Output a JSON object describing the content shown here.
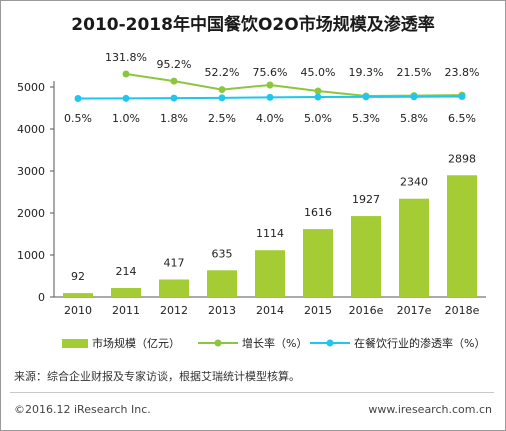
{
  "title": "2010-2018年中国餐饮O2O市场规模及渗透率",
  "source": "来源：综合企业财报及专家访谈，根据艾瑞统计模型核算。",
  "copyright": "©2016.12 iResearch Inc.",
  "website": "www.iresearch.com.cn",
  "colors": {
    "bar": "#a4cc34",
    "growth": "#8cc63f",
    "penetration": "#1fc6ee"
  },
  "chart_data": {
    "type": "bar",
    "categories": [
      "2010",
      "2011",
      "2012",
      "2013",
      "2014",
      "2015",
      "2016e",
      "2017e",
      "2018e"
    ],
    "ylim": [
      0,
      5000
    ],
    "yticks": [
      "0",
      "1000",
      "2000",
      "3000",
      "4000",
      "5000"
    ],
    "series": [
      {
        "name": "市场规模（亿元）",
        "type": "bar",
        "values": [
          92,
          214,
          417,
          635,
          1114,
          1616,
          1927,
          2340,
          2898
        ],
        "labels": [
          "92",
          "214",
          "417",
          "635",
          "1114",
          "1616",
          "1927",
          "2340",
          "2898"
        ]
      },
      {
        "name": "增长率（%）",
        "type": "line",
        "values": [
          null,
          131.8,
          95.2,
          52.2,
          75.6,
          45.0,
          19.3,
          21.5,
          23.8
        ],
        "labels": [
          "",
          "131.8%",
          "95.2%",
          "52.2%",
          "75.6%",
          "45.0%",
          "19.3%",
          "21.5%",
          "23.8%"
        ]
      },
      {
        "name": "在餐饮行业的渗透率（%）",
        "type": "line",
        "values": [
          0.5,
          1.0,
          1.8,
          2.5,
          4.0,
          5.0,
          5.3,
          5.8,
          6.5
        ],
        "labels": [
          "0.5%",
          "1.0%",
          "1.8%",
          "2.5%",
          "4.0%",
          "5.0%",
          "5.3%",
          "5.8%",
          "6.5%"
        ]
      }
    ]
  }
}
